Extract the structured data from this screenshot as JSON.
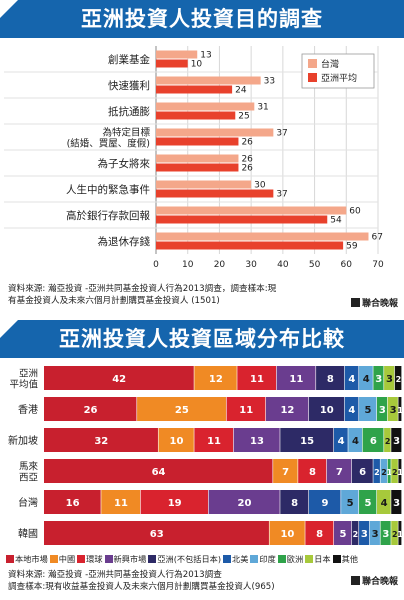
{
  "chart_data": [
    {
      "type": "bar",
      "title": "亞洲投資人投資目的調查",
      "orientation": "horizontal",
      "categories": [
        "創業基金",
        "快速獲利",
        "抵抗通膨",
        "為特定目標\n(結婚、買屋、度假)",
        "為子女將來",
        "人生中的緊急事件",
        "高於銀行存款回報",
        "為退休存錢"
      ],
      "series": [
        {
          "name": "台灣",
          "color": "#f4a78a",
          "values": [
            13,
            33,
            31,
            37,
            26,
            30,
            60,
            67
          ]
        },
        {
          "name": "亞洲平均",
          "color": "#e8412c",
          "values": [
            10,
            24,
            25,
            26,
            26,
            37,
            54,
            59
          ]
        }
      ],
      "x_ticks": [
        0,
        10,
        20,
        30,
        40,
        50,
        60,
        70
      ],
      "xlim": [
        0,
        70
      ],
      "legend_position": "top-right",
      "source": "資料來源: 瀚亞投資 -亞洲共同基金投資人行為2013調查，調查樣本:現有基金投資人及未來六個月計劃購買基金投資人 (1501)",
      "publisher": "聯合晚報"
    },
    {
      "type": "bar",
      "stacked": true,
      "orientation": "horizontal",
      "title": "亞洲投資人投資區域分布比較",
      "categories": [
        "亞洲\n平均值",
        "香港",
        "新加坡",
        "馬來\n西亞",
        "台灣",
        "韓國"
      ],
      "segments": [
        {
          "name": "本地市場",
          "color": "#c8202e"
        },
        {
          "name": "中國",
          "color": "#f08a24"
        },
        {
          "name": "環球",
          "color": "#d9232e"
        },
        {
          "name": "新興市場",
          "color": "#6a3d8f"
        },
        {
          "name": "亞洲(不包括日本)",
          "color": "#2d2a66"
        },
        {
          "name": "北美",
          "color": "#1d5aa8"
        },
        {
          "name": "印度",
          "color": "#5fa8d8"
        },
        {
          "name": "歐洲",
          "color": "#2fa34a"
        },
        {
          "name": "日本",
          "color": "#a7c93b"
        },
        {
          "name": "其他",
          "color": "#111111"
        }
      ],
      "rows": [
        [
          42,
          12,
          11,
          11,
          8,
          4,
          4,
          3,
          3,
          2
        ],
        [
          26,
          25,
          11,
          12,
          10,
          4,
          5,
          3,
          3,
          1
        ],
        [
          32,
          10,
          11,
          13,
          15,
          4,
          4,
          6,
          2,
          3
        ],
        [
          64,
          7,
          8,
          7,
          6,
          2,
          2,
          1,
          2,
          1
        ],
        [
          16,
          11,
          19,
          20,
          8,
          9,
          5,
          5,
          4,
          3
        ],
        [
          63,
          10,
          8,
          5,
          2,
          3,
          3,
          3,
          2,
          1
        ]
      ],
      "source_lines": [
        "資料來源: 瀚亞投資 -亞洲共同基金投資人行為2013調查",
        "調查樣本:現有收益基金投資人及未來六個月計劃購買基金投資人(965)"
      ],
      "publisher": "聯合晚報"
    }
  ]
}
